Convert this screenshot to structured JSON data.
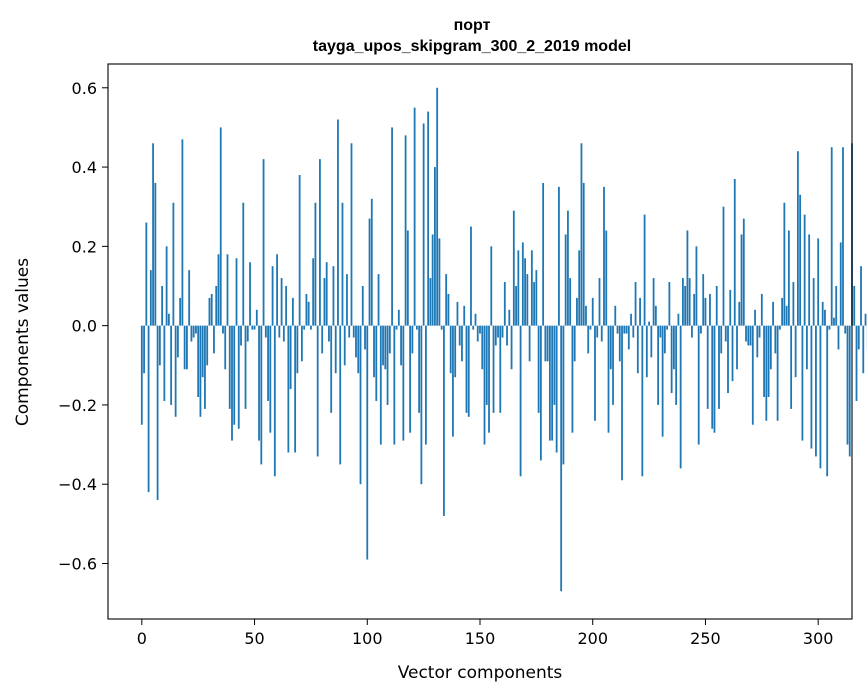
{
  "chart_data": {
    "type": "bar",
    "title": "порт",
    "subtitle": "tayga_upos_skipgram_300_2_2019 model",
    "xlabel": "Vector components",
    "ylabel": "Components values",
    "xlim": [
      -15,
      315
    ],
    "ylim": [
      -0.74,
      0.66
    ],
    "xticks": [
      0,
      50,
      100,
      150,
      200,
      250,
      300
    ],
    "yticks": [
      -0.6,
      -0.4,
      -0.2,
      0.0,
      0.2,
      0.4,
      0.6
    ],
    "ytick_labels": [
      "−0.6",
      "−0.4",
      "−0.2",
      "0.0",
      "0.2",
      "0.4",
      "0.6"
    ],
    "grid": false,
    "bar_color": "#1f77b4",
    "x_start": 0,
    "values": [
      -0.25,
      -0.12,
      0.26,
      -0.42,
      0.14,
      0.46,
      0.36,
      -0.44,
      -0.1,
      0.1,
      -0.19,
      0.2,
      0.03,
      -0.2,
      0.31,
      -0.23,
      -0.08,
      0.07,
      0.47,
      -0.11,
      -0.11,
      0.14,
      -0.04,
      -0.03,
      -0.02,
      -0.18,
      -0.23,
      -0.13,
      -0.21,
      -0.1,
      0.07,
      0.08,
      -0.07,
      0.1,
      0.18,
      0.5,
      -0.02,
      -0.11,
      0.18,
      -0.21,
      -0.29,
      -0.25,
      0.17,
      -0.26,
      -0.05,
      0.31,
      -0.21,
      -0.04,
      0.16,
      -0.01,
      -0.01,
      0.04,
      -0.29,
      -0.35,
      0.42,
      -0.03,
      -0.19,
      -0.27,
      0.15,
      -0.38,
      0.18,
      -0.03,
      0.12,
      -0.04,
      0.1,
      -0.32,
      -0.16,
      0.07,
      -0.32,
      -0.12,
      0.38,
      -0.09,
      -0.01,
      0.08,
      0.06,
      -0.01,
      0.17,
      0.31,
      -0.33,
      0.42,
      -0.07,
      0.12,
      0.16,
      -0.04,
      -0.22,
      0.15,
      -0.12,
      0.52,
      -0.35,
      0.31,
      -0.1,
      0.13,
      -0.03,
      0.46,
      -0.03,
      -0.08,
      -0.12,
      -0.4,
      0.1,
      -0.06,
      -0.59,
      0.27,
      0.32,
      -0.13,
      -0.19,
      0.13,
      -0.3,
      -0.1,
      -0.11,
      -0.2,
      -0.07,
      0.5,
      -0.3,
      -0.01,
      0.04,
      -0.1,
      -0.29,
      0.48,
      0.24,
      -0.27,
      -0.07,
      0.55,
      -0.01,
      -0.22,
      -0.4,
      0.51,
      -0.3,
      0.54,
      0.12,
      0.23,
      0.4,
      0.6,
      0.22,
      -0.01,
      -0.48,
      0.13,
      0.08,
      -0.12,
      -0.28,
      -0.13,
      0.06,
      -0.05,
      -0.09,
      0.05,
      -0.22,
      -0.23,
      0.25,
      -0.01,
      0.03,
      -0.04,
      -0.02,
      -0.11,
      -0.3,
      -0.2,
      -0.27,
      0.2,
      -0.22,
      -0.05,
      -0.03,
      -0.22,
      -0.03,
      0.11,
      -0.05,
      0.04,
      -0.11,
      0.29,
      0.1,
      0.19,
      -0.38,
      0.21,
      0.17,
      0.13,
      -0.09,
      0.19,
      0.11,
      0.14,
      -0.22,
      -0.34,
      0.36,
      -0.09,
      -0.09,
      -0.29,
      -0.29,
      -0.2,
      -0.32,
      0.35,
      -0.67,
      -0.35,
      0.23,
      0.29,
      0.12,
      -0.27,
      -0.09,
      0.07,
      0.19,
      0.46,
      0.36,
      0.05,
      -0.07,
      -0.01,
      0.07,
      -0.24,
      -0.03,
      0.12,
      -0.04,
      0.35,
      0.24,
      -0.27,
      -0.11,
      -0.2,
      0.05,
      -0.02,
      -0.09,
      -0.39,
      -0.02,
      -0.02,
      -0.06,
      0.03,
      -0.03,
      0.11,
      -0.12,
      0.07,
      -0.38,
      0.28,
      -0.13,
      0.01,
      -0.08,
      0.12,
      0.05,
      -0.2,
      -0.03,
      -0.28,
      -0.07,
      -0.01,
      0.11,
      -0.17,
      -0.11,
      -0.2,
      0.03,
      -0.36,
      0.12,
      0.1,
      0.24,
      0.12,
      -0.03,
      0.08,
      0.2,
      -0.3,
      -0.02,
      0.13,
      0.07,
      -0.21,
      0.08,
      -0.26,
      -0.27,
      0.1,
      -0.21,
      -0.07,
      0.3,
      -0.04,
      -0.17,
      0.09,
      -0.14,
      0.37,
      -0.11,
      0.06,
      0.23,
      0.27,
      -0.04,
      -0.05,
      -0.05,
      -0.25,
      0.04,
      -0.08,
      -0.03,
      0.08,
      -0.18,
      -0.24,
      -0.18,
      -0.11,
      0.06,
      -0.07,
      -0.24,
      -0.01,
      0.07,
      0.31,
      0.05,
      0.24,
      -0.21,
      0.11,
      -0.13,
      0.44,
      0.33,
      -0.29,
      0.28,
      -0.11,
      0.23,
      -0.31,
      0.12,
      -0.33,
      0.22,
      -0.36,
      0.06,
      0.04,
      -0.38,
      -0.01,
      0.45,
      0.02,
      0.1,
      -0.06,
      0.21,
      0.45,
      -0.02,
      -0.3,
      -0.33,
      0.46,
      0.1,
      -0.19,
      -0.06,
      0.15,
      -0.12,
      0.03,
      -0.06
    ]
  }
}
